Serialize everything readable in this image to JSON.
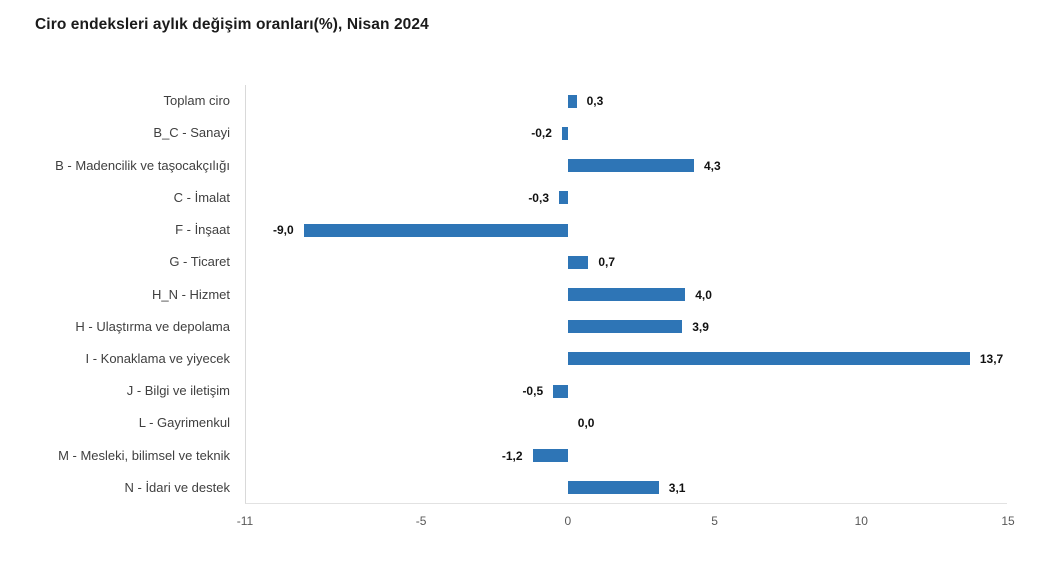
{
  "title": "Ciro endeksleri aylık değişim oranları(%), Nisan 2024",
  "colors": {
    "bar": "#2e75b6",
    "title_text": "#1b1b1b",
    "category_text": "#404040",
    "value_text": "#111111",
    "tick_text": "#595959",
    "axis_line": "#d9d9d9",
    "background": "#ffffff"
  },
  "chart_data": {
    "type": "bar",
    "orientation": "horizontal",
    "title": "Ciro endeksleri aylık değişim oranları(%), Nisan 2024",
    "xlabel": "",
    "ylabel": "",
    "grid": false,
    "legend": false,
    "xlim": [
      -11,
      15
    ],
    "xticks": [
      -11,
      -5,
      0,
      5,
      10,
      15
    ],
    "xtick_labels": [
      "-11",
      "-5",
      "0",
      "5",
      "10",
      "15"
    ],
    "categories": [
      "Toplam ciro",
      "B_C - Sanayi",
      "B - Madencilik ve taşocakçılığı",
      "C - İmalat",
      "F - İnşaat",
      "G - Ticaret",
      "H_N - Hizmet",
      "H - Ulaştırma ve depolama",
      "I - Konaklama ve yiyecek",
      "J - Bilgi ve iletişim",
      "L - Gayrimenkul",
      "M - Mesleki, bilimsel ve teknik",
      "N - İdari ve destek"
    ],
    "values": [
      0.3,
      -0.2,
      4.3,
      -0.3,
      -9.0,
      0.7,
      4.0,
      3.9,
      13.7,
      -0.5,
      0.0,
      -1.2,
      3.1
    ],
    "value_labels": [
      "0,3",
      "-0,2",
      "4,3",
      "-0,3",
      "-9,0",
      "0,7",
      "4,0",
      "3,9",
      "13,7",
      "-0,5",
      "0,0",
      "-1,2",
      "3,1"
    ]
  }
}
